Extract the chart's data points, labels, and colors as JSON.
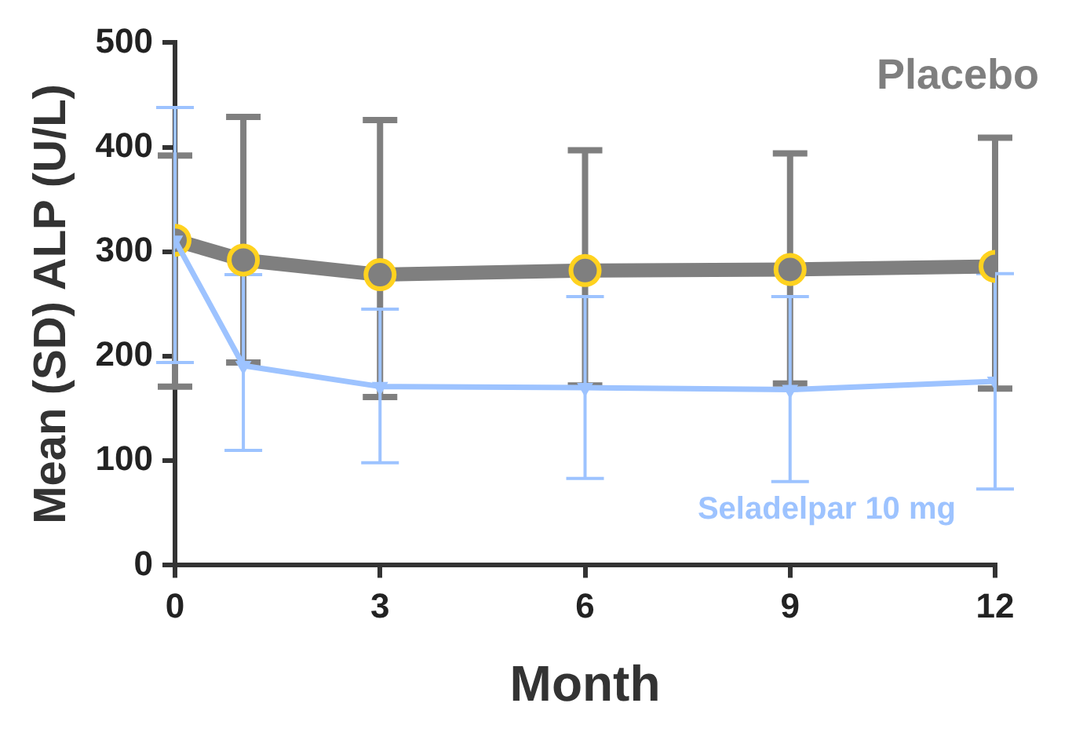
{
  "chart_data": {
    "type": "line",
    "xlabel": "Month",
    "ylabel": "Mean (SD) ALP (U/L)",
    "x": [
      0,
      1,
      3,
      6,
      9,
      12
    ],
    "xlim": [
      0,
      12
    ],
    "xticks": [
      0,
      3,
      6,
      9,
      12
    ],
    "ylim": [
      0,
      500
    ],
    "yticks": [
      0,
      100,
      200,
      300,
      400,
      500
    ],
    "grid": false,
    "legend": false,
    "series": [
      {
        "name": "Placebo",
        "color": "#7f7f7f",
        "marker": "circle",
        "values": [
          311,
          292,
          278,
          282,
          283,
          286
        ],
        "errors": [
          [
            171,
            392
          ],
          [
            194,
            429
          ],
          [
            161,
            426
          ],
          [
            172,
            397
          ],
          [
            174,
            394
          ],
          [
            169,
            409
          ]
        ]
      },
      {
        "name": "Seladelpar 10 mg",
        "color": "#9dc3ff",
        "marker": "triangle",
        "values": [
          311,
          191,
          171,
          170,
          168,
          176
        ],
        "errors": [
          [
            194,
            438
          ],
          [
            110,
            278
          ],
          [
            98,
            245
          ],
          [
            83,
            257
          ],
          [
            80,
            257
          ],
          [
            73,
            279
          ]
        ]
      }
    ]
  }
}
